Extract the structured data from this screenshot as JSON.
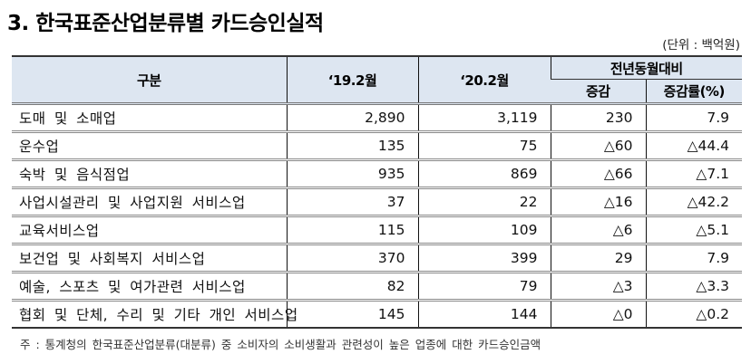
{
  "title": "3. 한국표준산업분류별 카드승인실적",
  "unit": "(단위 : 백억원)",
  "table": {
    "headers": {
      "category": "구분",
      "prev": "‘19.2월",
      "curr": "‘20.2월",
      "yoy_group": "전년동월대비",
      "change": "증감",
      "change_rate": "증감률(%)"
    },
    "rows": [
      {
        "category": "도매 및 소매업",
        "prev": "2,890",
        "curr": "3,119",
        "change": "230",
        "rate": "7.9"
      },
      {
        "category": "운수업",
        "prev": "135",
        "curr": "75",
        "change": "△60",
        "rate": "△44.4"
      },
      {
        "category": "숙박 및 음식점업",
        "prev": "935",
        "curr": "869",
        "change": "△66",
        "rate": "△7.1"
      },
      {
        "category": "사업시설관리 및 사업지원 서비스업",
        "prev": "37",
        "curr": "22",
        "change": "△16",
        "rate": "△42.2"
      },
      {
        "category": "교육서비스업",
        "prev": "115",
        "curr": "109",
        "change": "△6",
        "rate": "△5.1"
      },
      {
        "category": "보건업 및 사회복지 서비스업",
        "prev": "370",
        "curr": "399",
        "change": "29",
        "rate": "7.9"
      },
      {
        "category": "예술, 스포츠 및 여가관련 서비스업",
        "prev": "82",
        "curr": "79",
        "change": "△3",
        "rate": "△3.3"
      },
      {
        "category": "협회 및 단체, 수리 및 기타 개인 서비스업",
        "prev": "145",
        "curr": "144",
        "change": "△0",
        "rate": "△0.2"
      }
    ]
  },
  "note": "주 : 통계청의 한국표준산업분류(대분류) 중 소비자의 소비생활과 관련성이 높은 업종에 대한 카드승인금액",
  "colors": {
    "header_bg": "#dde6f1",
    "text": "#111111"
  }
}
